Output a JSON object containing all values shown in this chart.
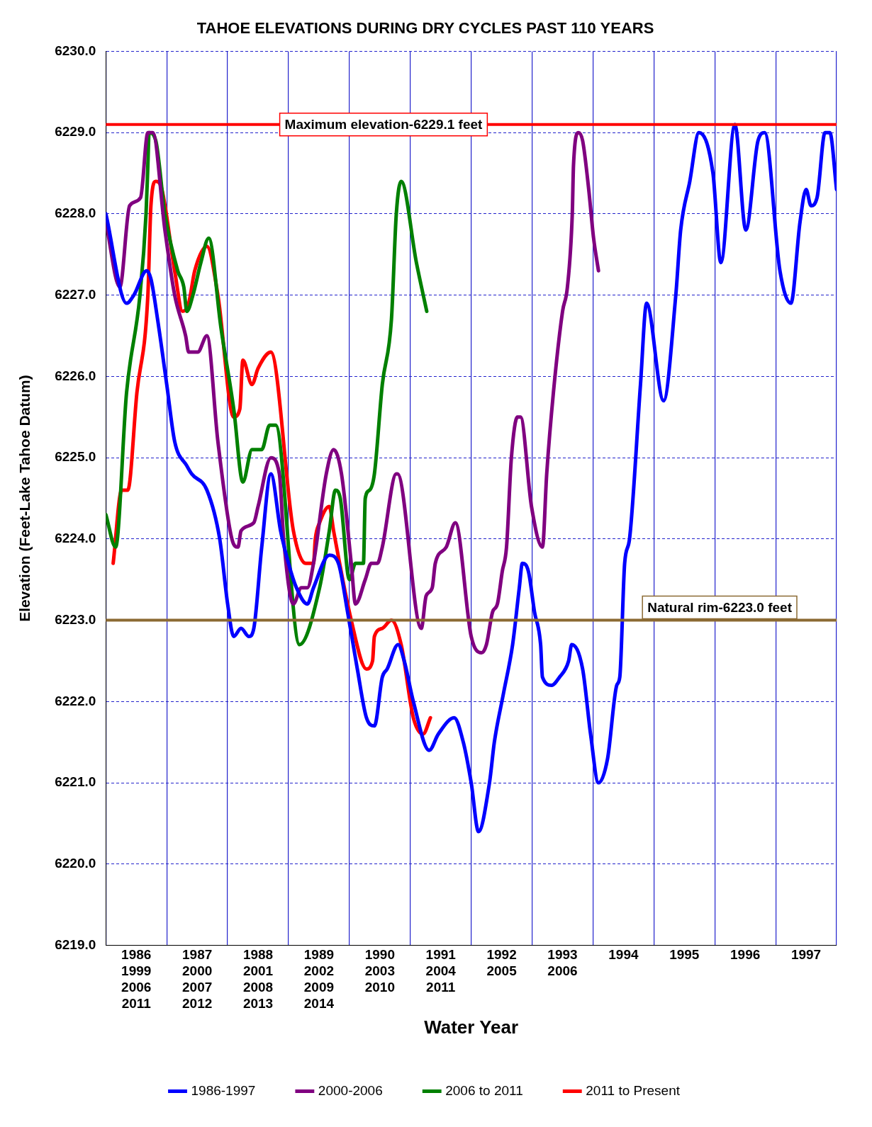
{
  "chart_data": {
    "type": "line",
    "title": "TAHOE ELEVATIONS DURING DRY CYCLES PAST 110 YEARS",
    "xlabel": "Water Year",
    "ylabel": "Elevation (Feet-Lake Tahoe Datum)",
    "xlim": [
      1985.5,
      1997.5
    ],
    "xticks": [
      {
        "value": 1985.5,
        "label": null
      },
      {
        "value": 1986,
        "label": "1986\n1999\n2006\n2011"
      },
      {
        "value": 1986.5,
        "label": null
      },
      {
        "value": 1987,
        "label": "1987\n2000\n2007\n2012"
      },
      {
        "value": 1987.5,
        "label": null
      },
      {
        "value": 1988,
        "label": "1988\n2001\n2008\n2013"
      },
      {
        "value": 1988.5,
        "label": null
      },
      {
        "value": 1989,
        "label": "1989\n2002\n2009\n2014"
      },
      {
        "value": 1989.5,
        "label": null
      },
      {
        "value": 1990,
        "label": "1990\n2003\n2010"
      },
      {
        "value": 1990.5,
        "label": null
      },
      {
        "value": 1991,
        "label": "1991\n2004\n2011"
      },
      {
        "value": 1991.5,
        "label": null
      },
      {
        "value": 1992,
        "label": "1992\n2005"
      },
      {
        "value": 1992.5,
        "label": null
      },
      {
        "value": 1993,
        "label": "1993\n2006"
      },
      {
        "value": 1993.5,
        "label": null
      },
      1994,
      {
        "value": 1994.5,
        "label": null
      },
      1995,
      {
        "value": 1995.5,
        "label": null
      },
      1996,
      {
        "value": 1996.5,
        "label": null
      },
      1997,
      {
        "value": 1997.5,
        "label": null
      }
    ],
    "ylim": [
      6219,
      6230
    ],
    "yticks": [
      {
        "value": 6219,
        "label": "6219.0"
      },
      {
        "value": 6220,
        "label": "6220.0"
      },
      {
        "value": 6221,
        "label": "6221.0"
      },
      {
        "value": 6222,
        "label": "6222.0"
      },
      {
        "value": 6223,
        "label": "6223.0"
      },
      {
        "value": 6224,
        "label": "6224.0"
      },
      {
        "value": 6225,
        "label": "6225.0"
      },
      {
        "value": 6226,
        "label": "6226.0"
      },
      {
        "value": 6227,
        "label": "6227.0"
      },
      {
        "value": 6228,
        "label": "6228.0"
      },
      {
        "value": 6229,
        "label": "6229.0"
      },
      {
        "value": 6230,
        "label": "6230.0"
      }
    ],
    "grid": true,
    "legend": "bottom",
    "marker": "none",
    "line_style": "solid",
    "ref_lines": [
      {
        "axis": "y",
        "value": 6229.1,
        "label": "Maximum elevation-6229.1 feet",
        "color": "#ff0000"
      },
      {
        "axis": "y",
        "value": 6223.0,
        "label": "Natural rim-6223.0 feet",
        "color": "#8b6a33"
      }
    ],
    "series": [
      {
        "name": "1986-1997",
        "color": "#0000ff",
        "x": [
          1985.5,
          1985.84,
          1985.96,
          1986.17,
          1986.24,
          1986.35,
          1986.5,
          1986.63,
          1986.83,
          1986.91,
          1987.16,
          1987.37,
          1987.5,
          1987.6,
          1987.72,
          1987.85,
          1987.93,
          1988.06,
          1988.21,
          1988.37,
          1988.5,
          1988.63,
          1988.81,
          1988.91,
          1989.17,
          1989.32,
          1989.47,
          1989.63,
          1989.78,
          1989.91,
          1990.04,
          1990.12,
          1990.3,
          1990.4,
          1990.55,
          1990.81,
          1990.96,
          1991.22,
          1991.37,
          1991.5,
          1991.62,
          1991.8,
          1991.88,
          1992.03,
          1992.18,
          1992.29,
          1992.34,
          1992.44,
          1992.54,
          1992.64,
          1992.67,
          1992.82,
          1992.95,
          1993.1,
          1993.15,
          1993.33,
          1993.46,
          1993.59,
          1993.74,
          1993.89,
          1993.94,
          1994.02,
          1994.1,
          1994.28,
          1994.38,
          1994.66,
          1994.86,
          1994.94,
          1995.09,
          1995.24,
          1995.47,
          1995.6,
          1995.83,
          1996.01,
          1996.21,
          1996.32,
          1996.57,
          1996.75,
          1996.9,
          1997.0,
          1997.08,
          1997.18,
          1997.31,
          1997.39,
          1997.5
        ],
        "values": [
          6228.0,
          6226.9,
          6227.0,
          6227.3,
          6227.2,
          6226.7,
          6225.9,
          6225.2,
          6224.9,
          6224.8,
          6224.6,
          6224.0,
          6223.2,
          6222.8,
          6222.9,
          6222.8,
          6222.9,
          6223.9,
          6224.8,
          6224.1,
          6223.7,
          6223.4,
          6223.2,
          6223.4,
          6223.8,
          6223.7,
          6223.1,
          6222.4,
          6221.8,
          6221.7,
          6222.3,
          6222.4,
          6222.7,
          6222.5,
          6222.0,
          6221.4,
          6221.6,
          6221.8,
          6221.5,
          6221.0,
          6220.4,
          6221.0,
          6221.5,
          6222.1,
          6222.7,
          6223.4,
          6223.7,
          6223.6,
          6223.1,
          6222.7,
          6222.3,
          6222.2,
          6222.3,
          6222.5,
          6222.7,
          6222.4,
          6221.6,
          6221.0,
          6221.3,
          6222.2,
          6222.3,
          6223.7,
          6224.0,
          6225.9,
          6226.9,
          6225.7,
          6227.0,
          6227.8,
          6228.4,
          6229.0,
          6228.5,
          6227.4,
          6229.1,
          6227.8,
          6228.9,
          6229.0,
          6227.3,
          6226.9,
          6227.9,
          6228.3,
          6228.1,
          6228.2,
          6229.0,
          6229.0,
          6228.3
        ]
      },
      {
        "name": "2000-2006",
        "color": "#800080",
        "x": [
          1985.5,
          1985.73,
          1985.89,
          1986.07,
          1986.19,
          1986.27,
          1986.47,
          1986.63,
          1986.81,
          1986.86,
          1987.01,
          1987.16,
          1987.34,
          1987.57,
          1987.67,
          1987.72,
          1987.93,
          1988.0,
          1988.21,
          1988.35,
          1988.42,
          1988.58,
          1988.71,
          1988.81,
          1988.91,
          1989.12,
          1989.24,
          1989.37,
          1989.53,
          1989.6,
          1989.76,
          1989.86,
          1989.96,
          1990.04,
          1990.27,
          1990.29,
          1990.68,
          1990.76,
          1990.86,
          1990.91,
          1991.09,
          1991.24,
          1991.5,
          1991.67,
          1991.75,
          1991.85,
          1991.93,
          1992.01,
          1992.08,
          1992.16,
          1992.26,
          1992.31,
          1992.49,
          1992.67,
          1992.74,
          1992.85,
          1993.0,
          1993.08,
          1993.16,
          1993.18,
          1993.26,
          1993.33,
          1993.43,
          1993.51,
          1993.59
        ],
        "values": [
          6227.9,
          6227.1,
          6228.1,
          6228.2,
          6229.0,
          6229.0,
          6227.8,
          6227.0,
          6226.5,
          6226.3,
          6226.3,
          6226.5,
          6225.2,
          6224.0,
          6223.9,
          6224.1,
          6224.2,
          6224.4,
          6225.0,
          6224.8,
          6224.0,
          6223.2,
          6223.4,
          6223.4,
          6223.7,
          6224.8,
          6225.1,
          6224.8,
          6223.7,
          6223.2,
          6223.5,
          6223.7,
          6223.7,
          6223.9,
          6224.8,
          6224.8,
          6222.9,
          6223.3,
          6223.4,
          6223.7,
          6223.9,
          6224.2,
          6222.8,
          6222.6,
          6222.7,
          6223.1,
          6223.2,
          6223.6,
          6223.9,
          6225.0,
          6225.5,
          6225.5,
          6224.4,
          6223.9,
          6224.8,
          6225.8,
          6226.8,
          6227.1,
          6228.0,
          6228.6,
          6229.0,
          6228.9,
          6228.3,
          6227.7,
          6227.3
        ]
      },
      {
        "name": "2006 to 2011",
        "color": "#008000",
        "x": [
          1985.5,
          1985.66,
          1985.84,
          1986.06,
          1986.16,
          1986.19,
          1986.21,
          1986.32,
          1986.47,
          1986.68,
          1986.78,
          1986.83,
          1986.93,
          1987.06,
          1987.19,
          1987.39,
          1987.6,
          1987.75,
          1987.9,
          1988.06,
          1988.19,
          1988.29,
          1988.68,
          1989.01,
          1989.17,
          1989.27,
          1989.35,
          1989.5,
          1989.6,
          1989.73,
          1989.76,
          1989.83,
          1989.91,
          1990.04,
          1990.19,
          1990.27,
          1990.35,
          1990.6,
          1990.77
        ],
        "values": [
          6224.3,
          6223.9,
          6225.8,
          6227.0,
          6228.0,
          6228.6,
          6229.0,
          6228.9,
          6228.0,
          6227.3,
          6227.1,
          6226.8,
          6227.0,
          6227.4,
          6227.7,
          6226.6,
          6225.6,
          6224.7,
          6225.1,
          6225.1,
          6225.4,
          6225.4,
          6222.7,
          6223.4,
          6224.1,
          6224.6,
          6224.5,
          6223.5,
          6223.7,
          6223.7,
          6224.5,
          6224.6,
          6224.8,
          6225.9,
          6226.7,
          6228.0,
          6228.4,
          6227.4,
          6226.8
        ]
      },
      {
        "name": "2011 to Present",
        "color": "#ff0000",
        "x": [
          1985.62,
          1985.76,
          1985.86,
          1986.01,
          1986.19,
          1986.24,
          1986.32,
          1986.42,
          1986.63,
          1986.76,
          1986.86,
          1986.96,
          1987.16,
          1987.34,
          1987.6,
          1987.7,
          1987.75,
          1987.9,
          1988.0,
          1988.21,
          1988.58,
          1988.78,
          1988.91,
          1988.94,
          1989.01,
          1989.17,
          1989.24,
          1989.53,
          1989.78,
          1989.88,
          1989.91,
          1990.04,
          1990.19,
          1990.35,
          1990.55,
          1990.71,
          1990.83
        ],
        "values": [
          6223.7,
          6224.6,
          6224.6,
          6225.8,
          6227.0,
          6228.1,
          6228.4,
          6228.3,
          6227.3,
          6226.8,
          6226.9,
          6227.3,
          6227.6,
          6227.0,
          6225.5,
          6225.6,
          6226.2,
          6225.9,
          6226.1,
          6226.3,
          6224.1,
          6223.7,
          6223.7,
          6224.0,
          6224.2,
          6224.4,
          6224.1,
          6223.0,
          6222.4,
          6222.5,
          6222.8,
          6222.9,
          6223.0,
          6222.7,
          6221.8,
          6221.6,
          6221.8
        ]
      }
    ]
  }
}
